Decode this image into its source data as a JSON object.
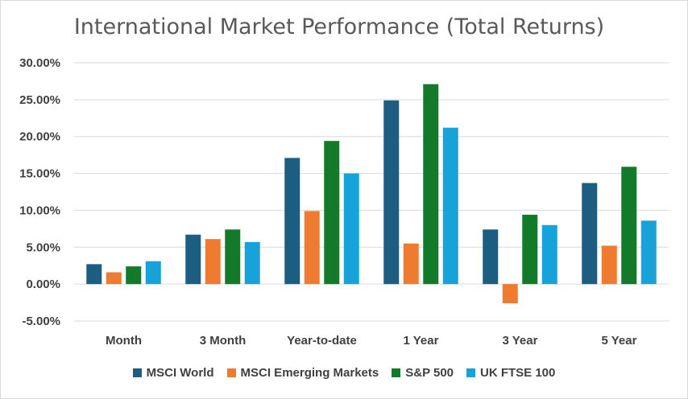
{
  "chart_data": {
    "type": "bar",
    "title": "International Market Performance (Total Returns)",
    "categories": [
      "Month",
      "3 Month",
      "Year-to-date",
      "1 Year",
      "3 Year",
      "5 Year"
    ],
    "series": [
      {
        "name": "MSCI World",
        "color": "#1b5e82",
        "values": [
          2.7,
          6.7,
          17.1,
          24.9,
          7.4,
          13.7
        ]
      },
      {
        "name": "MSCI Emerging Markets",
        "color": "#ee7b30",
        "values": [
          1.6,
          6.1,
          9.9,
          5.5,
          -2.6,
          5.2
        ]
      },
      {
        "name": "S&P 500",
        "color": "#137a2a",
        "values": [
          2.4,
          7.4,
          19.4,
          27.1,
          9.4,
          15.9
        ]
      },
      {
        "name": "UK FTSE 100",
        "color": "#18a2da",
        "values": [
          3.1,
          5.7,
          15.0,
          21.2,
          8.0,
          8.6
        ]
      }
    ],
    "y_ticks": [
      "30.00%",
      "25.00%",
      "20.00%",
      "15.00%",
      "10.00%",
      "5.00%",
      "0.00%",
      "-5.00%"
    ],
    "ylim": [
      -5,
      30
    ],
    "xlabel": "",
    "ylabel": "",
    "grid": true,
    "legend_position": "bottom"
  }
}
